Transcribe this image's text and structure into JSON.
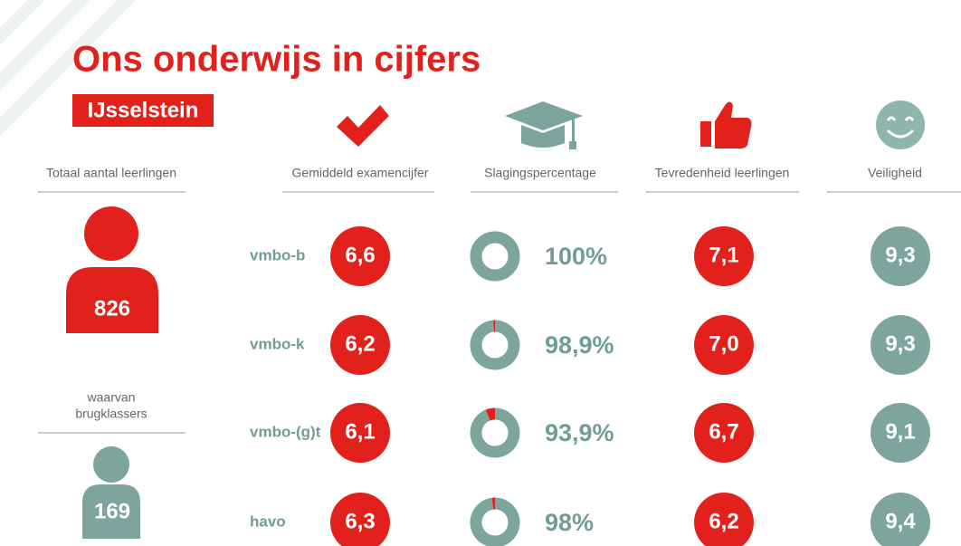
{
  "header": {
    "title": "Ons onderwijs in cijfers",
    "subtitle": "IJsselstein"
  },
  "students": {
    "label": "Totaal aantal leerlingen",
    "total": "826",
    "sub_label": [
      "waarvan",
      "brugklassers"
    ],
    "first_years": "169"
  },
  "columns": [
    "Gemiddeld examencijfer",
    "Slagingspercentage",
    "Tevredenheid leerlingen",
    "Veiligheid"
  ],
  "rows": [
    {
      "level": "vmbo-b",
      "exam": "6,6",
      "pass_rate": {
        "value": 100,
        "label": "100%"
      },
      "satisfaction": "7,1",
      "safety": "9,3"
    },
    {
      "level": "vmbo-k",
      "exam": "6,2",
      "pass_rate": {
        "value": 98.9,
        "label": "98,9%"
      },
      "satisfaction": "7,0",
      "safety": "9,3"
    },
    {
      "level": "vmbo-(g)t",
      "exam": "6,1",
      "pass_rate": {
        "value": 93.9,
        "label": "93,9%"
      },
      "satisfaction": "6,7",
      "safety": "9,1"
    },
    {
      "level": "havo",
      "exam": "6,3",
      "pass_rate": {
        "value": 98,
        "label": "98%"
      },
      "satisfaction": "6,2",
      "safety": "9,4"
    }
  ]
}
